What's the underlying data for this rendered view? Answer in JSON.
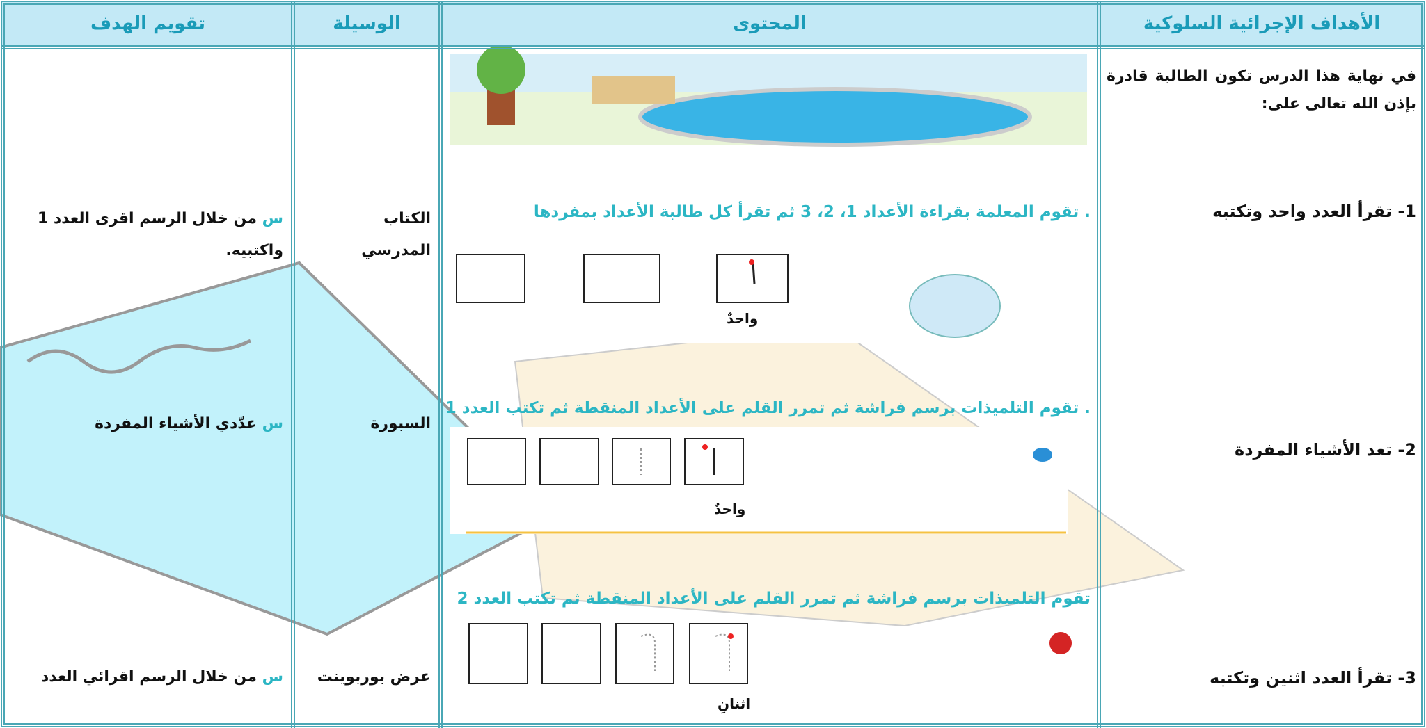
{
  "header": {
    "columns": [
      "الأهداف الإجرائية السلوكية",
      "المحتوى",
      "الوسيلة",
      "تقويم الهدف"
    ]
  },
  "intro": "في نهاية هذا الدرس تكون الطالبة قادرة بإذن الله تعالى على:",
  "rows": [
    {
      "objective": "1- تقرأ العدد واحد وتكتبه",
      "content": ". تقوم المعلمة بقراءة الأعداد 1، 2، 3 ثم تقرأ كل طالبة الأعداد بمفردها",
      "word": "واحدٌ",
      "tool": "الكتاب المدرسي",
      "question_marker": "س",
      "question": "من خلال الرسم اقرى العدد 1 واكتبيه."
    },
    {
      "objective": "2- تعد الأشياء المفردة",
      "content": ". تقوم التلميذات برسم فراشة ثم تمرر القلم على الأعداد المنقطة ثم تكتب العدد 1",
      "word": "واحدٌ",
      "tool": "السبورة",
      "question_marker": "س",
      "question": "عدّدي الأشياء المفردة"
    },
    {
      "objective": "3- تقرأ العدد اثنين وتكتبه",
      "content": "تقوم التلميذات برسم فراشة ثم تمرر القلم على الأعداد المنقطة ثم تكتب العدد 2",
      "word": "اثنانِ",
      "tool": "عرض بوربوينت",
      "question_marker": "س",
      "question": "من خلال الرسم اقرائي العدد"
    }
  ]
}
